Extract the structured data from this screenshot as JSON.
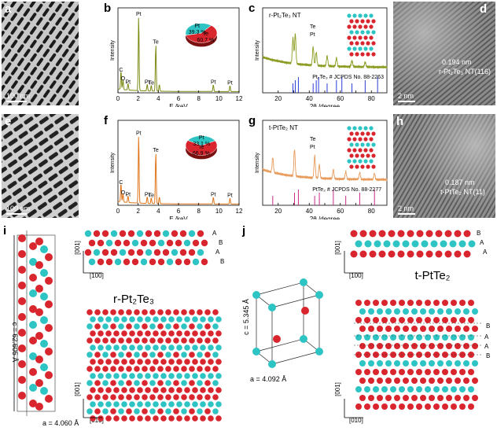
{
  "labels": {
    "a": "a",
    "b": "b",
    "c": "c",
    "d": "d",
    "e": "e",
    "f": "f",
    "g": "g",
    "h": "h",
    "i": "i",
    "j": "j"
  },
  "tem": {
    "a_scale": "100 nm",
    "d_scale": "2 nm",
    "d_spacing": "0.194 nm",
    "d_plane": "r-Pt₂Te₃ NT(116)",
    "e_scale": "100 nm",
    "h_scale": "2 nm",
    "h_spacing": "0.187 nm",
    "h_plane": "t-PtTe₂ NT(11)"
  },
  "colors": {
    "pt": "#2ec4c4",
    "te": "#d9262e",
    "eds_b": "#7d8a12",
    "eds_f": "#e07418",
    "xrd_c": "#8a9a1e",
    "xrd_g": "#e89a5a",
    "ref_c": "#2a3fd6",
    "ref_g": "#c82a8a"
  },
  "chart_data": [
    {
      "id": "b",
      "type": "line",
      "xlabel": "E /keV",
      "ylabel": "Intensity",
      "xlim": [
        0,
        12
      ],
      "xticks": [
        "0",
        "2",
        "4",
        "6",
        "8",
        "10",
        "12"
      ],
      "peaks": [
        {
          "x": 0.3,
          "y": 0.22,
          "label": "C"
        },
        {
          "x": 0.5,
          "y": 0.12,
          "label": "O"
        },
        {
          "x": 1.0,
          "y": 0.08,
          "label": "Pt"
        },
        {
          "x": 2.05,
          "y": 0.88,
          "label": "Pt"
        },
        {
          "x": 2.9,
          "y": 0.08,
          "label": "Pt"
        },
        {
          "x": 3.3,
          "y": 0.07,
          "label": "Te"
        },
        {
          "x": 3.75,
          "y": 0.55,
          "label": "Te"
        },
        {
          "x": 4.1,
          "y": 0.08,
          "label": ""
        },
        {
          "x": 9.45,
          "y": 0.08,
          "label": "Pt"
        },
        {
          "x": 11.1,
          "y": 0.07,
          "label": "Pt"
        }
      ],
      "pie": [
        {
          "name": "Te",
          "value": 60.7,
          "label": "60.7 %"
        },
        {
          "name": "Pt",
          "value": 39.3,
          "label": "39.3 %"
        }
      ]
    },
    {
      "id": "c",
      "type": "line",
      "xlabel": "2θ /degree",
      "ylabel": "Intensity",
      "xlim": [
        10,
        90
      ],
      "xticks": [
        "20",
        "30",
        "40",
        "50",
        "60",
        "70",
        "80"
      ],
      "sample": "r-Pt₂Te₃ NT",
      "legend": [
        "Te",
        "Pt"
      ],
      "reference": "Pt₂Te₃ # JCPDS No. 88-2263",
      "peaks": [
        {
          "x": 29.5,
          "y": 0.75
        },
        {
          "x": 31.0,
          "y": 0.9
        },
        {
          "x": 42.5,
          "y": 0.55
        },
        {
          "x": 44.5,
          "y": 0.4
        },
        {
          "x": 51.5,
          "y": 0.3
        },
        {
          "x": 57.5,
          "y": 0.25
        },
        {
          "x": 67.5,
          "y": 0.18
        },
        {
          "x": 76.0,
          "y": 0.15
        }
      ],
      "ref_lines": [
        29.5,
        31,
        33,
        42.5,
        44.5,
        46,
        51.5,
        57.5,
        61,
        67.5,
        76,
        84
      ]
    },
    {
      "id": "f",
      "type": "line",
      "xlabel": "E /keV",
      "ylabel": "Intensity",
      "xlim": [
        0,
        12
      ],
      "xticks": [
        "0",
        "2",
        "4",
        "6",
        "8",
        "10",
        "12"
      ],
      "peaks": [
        {
          "x": 0.3,
          "y": 0.22,
          "label": "C"
        },
        {
          "x": 0.5,
          "y": 0.1,
          "label": "O"
        },
        {
          "x": 1.0,
          "y": 0.08,
          "label": "Pt"
        },
        {
          "x": 2.05,
          "y": 0.8,
          "label": "Pt"
        },
        {
          "x": 2.9,
          "y": 0.08,
          "label": "Pt"
        },
        {
          "x": 3.3,
          "y": 0.07,
          "label": "Te"
        },
        {
          "x": 3.75,
          "y": 0.6,
          "label": "Te"
        },
        {
          "x": 4.1,
          "y": 0.08,
          "label": ""
        },
        {
          "x": 9.45,
          "y": 0.08,
          "label": "Pt"
        },
        {
          "x": 11.1,
          "y": 0.07,
          "label": "Pt"
        }
      ],
      "pie": [
        {
          "name": "Te",
          "value": 66.9,
          "label": "66.9 %"
        },
        {
          "name": "Pt",
          "value": 33.1,
          "label": "33.1 %"
        }
      ]
    },
    {
      "id": "g",
      "type": "line",
      "xlabel": "2θ /degree",
      "ylabel": "Intensity",
      "xlim": [
        10,
        90
      ],
      "xticks": [
        "20",
        "30",
        "40",
        "50",
        "60",
        "70",
        "80"
      ],
      "sample": "t-PtTe₂ NT",
      "legend": [
        "Te",
        "Pt"
      ],
      "reference": "PtTe₂ # JCPDS No. 88-2277",
      "peaks": [
        {
          "x": 16.5,
          "y": 0.45
        },
        {
          "x": 30.5,
          "y": 0.8
        },
        {
          "x": 43.5,
          "y": 0.65
        },
        {
          "x": 46.5,
          "y": 0.4
        },
        {
          "x": 55.5,
          "y": 0.28
        },
        {
          "x": 63.5,
          "y": 0.22
        },
        {
          "x": 72.5,
          "y": 0.2
        },
        {
          "x": 82.0,
          "y": 0.18
        }
      ],
      "ref_lines": [
        16.5,
        30.5,
        33,
        43.5,
        46.5,
        55.5,
        63.5,
        72.5,
        82
      ]
    }
  ],
  "structures": {
    "i_c": "c = 62.605 Å",
    "i_a": "a = 4.060 Å",
    "i_title": "r-Pt₂Te₃",
    "i_axis_top_v": "[001]",
    "i_axis_top_h": "[100]",
    "i_axis_bot_v": "[001]",
    "i_axis_bot_h": "[010]",
    "i_stack": [
      "A",
      "B",
      "A",
      "B"
    ],
    "j_c": "c = 5.345 Å",
    "j_a": "a = 4.092 Å",
    "j_title": "t-PtTe₂",
    "j_axis_top_v": "[001]",
    "j_axis_top_h": "[100]",
    "j_axis_bot_v": "[001]",
    "j_axis_bot_h": "[010]",
    "j_stack_top": [
      "B",
      "A",
      "A"
    ],
    "j_stack_bot": [
      "B",
      "A",
      "A",
      "B"
    ]
  }
}
